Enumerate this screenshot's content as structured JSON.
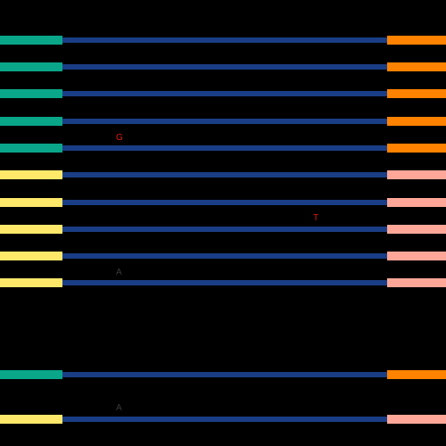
{
  "colors": {
    "background": "#000000",
    "teal": "#0aa68a",
    "yellow": "#fde86a",
    "blue": "#1a3e85",
    "orange": "#ff8200",
    "salmon": "#fea798",
    "red_mark": "#e0190f",
    "dark_mark": "#3a3a3a"
  },
  "tracks": [
    {
      "left": "teal",
      "right": "orange"
    },
    {
      "left": "teal",
      "right": "orange"
    },
    {
      "left": "teal",
      "right": "orange"
    },
    {
      "left": "teal",
      "right": "orange"
    },
    {
      "left": "teal",
      "right": "orange"
    },
    {
      "left": "yellow",
      "right": "salmon"
    },
    {
      "left": "yellow",
      "right": "salmon"
    },
    {
      "left": "yellow",
      "right": "salmon"
    },
    {
      "left": "yellow",
      "right": "salmon"
    },
    {
      "left": "yellow",
      "right": "salmon"
    },
    {
      "left": "teal",
      "right": "orange"
    },
    {
      "left": "yellow",
      "right": "salmon"
    }
  ],
  "marks": [
    {
      "text": "G",
      "color": "red_mark"
    },
    {
      "text": "T",
      "color": "red_mark"
    },
    {
      "text": "A",
      "color": "dark_mark"
    },
    {
      "text": "A",
      "color": "dark_mark"
    }
  ]
}
